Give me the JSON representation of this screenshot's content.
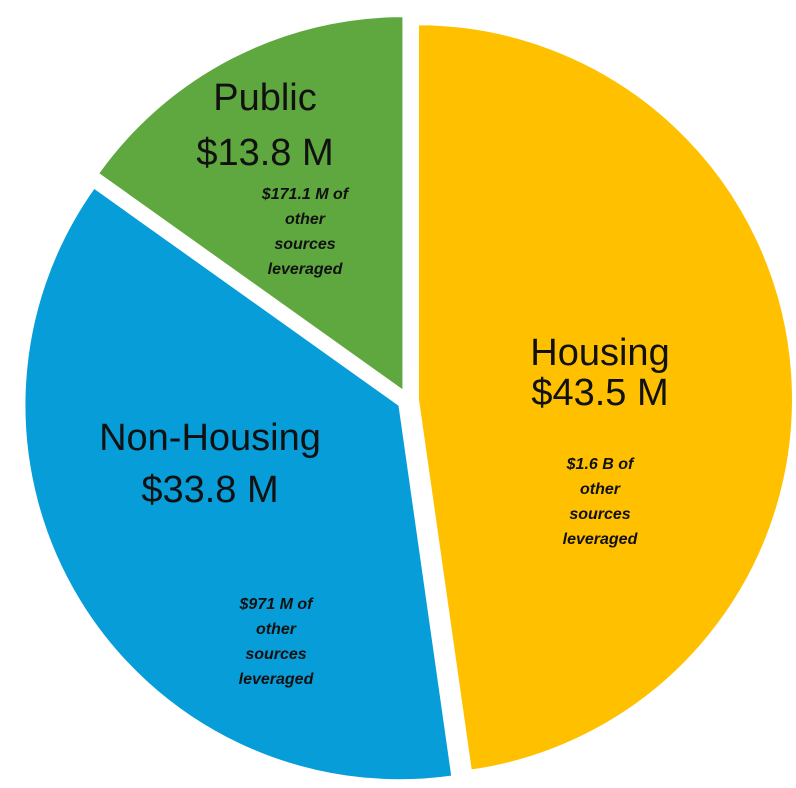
{
  "chart_data": {
    "type": "pie",
    "categories": [
      "Housing",
      "Non-Housing",
      "Public"
    ],
    "values": [
      43.5,
      33.8,
      13.8
    ],
    "value_labels": [
      "$43.5 M",
      "$33.8 M",
      "$13.8 M"
    ],
    "colors": [
      "#FFC000",
      "#069DD8",
      "#5EA83F"
    ],
    "annotations": [
      [
        "$1.6 B of",
        "other",
        "sources",
        "leveraged"
      ],
      [
        "$971 M of",
        "other",
        "sources",
        "leveraged"
      ],
      [
        "$171.1 M of",
        "other",
        "sources",
        "leveraged"
      ]
    ]
  }
}
